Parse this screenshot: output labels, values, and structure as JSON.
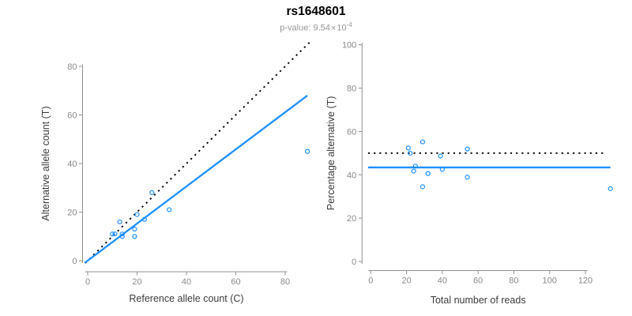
{
  "header": {
    "title": "rs1648601",
    "pvalue_prefix": "p-value: ",
    "pvalue_mantissa": "9.54",
    "pvalue_multiplier": "×",
    "pvalue_base": "10",
    "pvalue_exponent": "-4"
  },
  "colors": {
    "accent_blue": "#1E90FF",
    "dotted_black": "#000000",
    "axis_gray": "#919191",
    "tick_label_gray": "#8A8A8A",
    "axis_title_dark": "#3C3C3C",
    "subtitle_gray": "#969696",
    "background": "#FFFFFF"
  },
  "chart_data": [
    {
      "type": "scatter",
      "xlabel": "Reference allele count (C)",
      "ylabel": "Alternative allele count (T)",
      "xticks": [
        0,
        20,
        40,
        60,
        80
      ],
      "yticks": [
        0,
        20,
        40,
        60,
        80
      ],
      "xlim": [
        0,
        92
      ],
      "ylim": [
        0,
        90
      ],
      "grid": false,
      "points": [
        [
          10,
          11
        ],
        [
          11,
          11
        ],
        [
          13,
          16
        ],
        [
          14,
          10
        ],
        [
          14,
          11
        ],
        [
          19,
          13
        ],
        [
          19,
          10
        ],
        [
          20,
          19
        ],
        [
          23,
          17
        ],
        [
          26,
          28
        ],
        [
          33,
          21
        ],
        [
          89,
          45
        ]
      ],
      "lines": [
        {
          "name": "identity-line",
          "dash": "dotted",
          "color": "#000000",
          "width": 1.9,
          "x1": -1,
          "y1": -1,
          "x2": 90,
          "y2": 90
        },
        {
          "name": "regression-line",
          "dash": "solid",
          "color": "#1E90FF",
          "width": 2.3,
          "x1": -1.2,
          "y1": -0.9,
          "x2": 89,
          "y2": 68
        }
      ]
    },
    {
      "type": "scatter",
      "xlabel": "Total number of reads",
      "ylabel": "Percentage alternative (T)",
      "xticks": [
        0,
        20,
        40,
        60,
        80,
        100,
        120
      ],
      "yticks": [
        0,
        20,
        40,
        60,
        80,
        100
      ],
      "xlim": [
        0,
        134
      ],
      "ylim": [
        0,
        100
      ],
      "grid": false,
      "points": [
        [
          21,
          52.4
        ],
        [
          22,
          50
        ],
        [
          29,
          55.2
        ],
        [
          24,
          41.7
        ],
        [
          25,
          44
        ],
        [
          32,
          40.6
        ],
        [
          29,
          34.5
        ],
        [
          39,
          48.7
        ],
        [
          40,
          42.5
        ],
        [
          54,
          51.9
        ],
        [
          54,
          38.9
        ],
        [
          134,
          33.6
        ]
      ],
      "lines": [
        {
          "name": "expected-ratio-line",
          "dash": "dotted",
          "color": "#000000",
          "width": 1.9,
          "x1": -1.5,
          "y1": 50,
          "x2": 132,
          "y2": 50
        },
        {
          "name": "observed-ratio-line",
          "dash": "solid",
          "color": "#1E90FF",
          "width": 2.3,
          "x1": -1.5,
          "y1": 43.4,
          "x2": 134,
          "y2": 43.4
        }
      ]
    }
  ]
}
